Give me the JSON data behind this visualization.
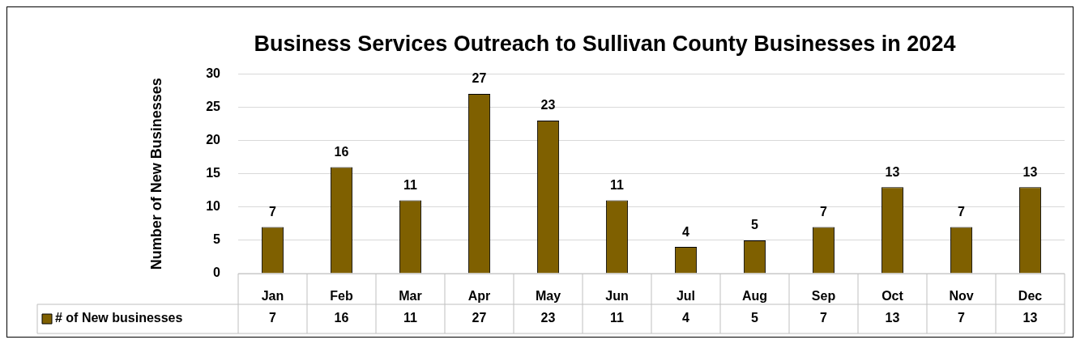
{
  "chart_data": {
    "type": "bar",
    "title": "Business Services Outreach to Sullivan County Businesses in 2024",
    "ylabel": "Number of New Businesses",
    "categories": [
      "Jan",
      "Feb",
      "Mar",
      "Apr",
      "May",
      "Jun",
      "Jul",
      "Aug",
      "Sep",
      "Oct",
      "Nov",
      "Dec"
    ],
    "series": [
      {
        "name": "# of New businesses",
        "color": "#7f6000",
        "values": [
          7,
          16,
          11,
          27,
          23,
          11,
          4,
          5,
          7,
          13,
          7,
          13
        ]
      }
    ],
    "annotations": [
      "7",
      "16",
      "11",
      "27",
      "23",
      "11",
      "4",
      "5",
      "7",
      "13",
      "7",
      "13"
    ],
    "ylim": [
      0,
      30
    ],
    "yticks": [
      0,
      5,
      10,
      15,
      20,
      25,
      30
    ],
    "grid": "y",
    "legend": "bottom",
    "data_labels": true
  }
}
